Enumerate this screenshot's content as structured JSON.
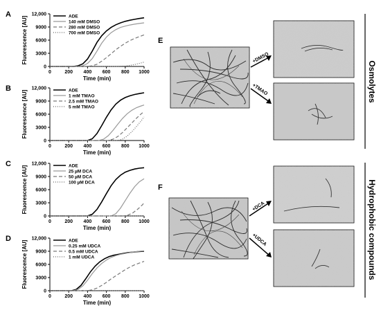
{
  "chart_data": [
    {
      "panel": "A",
      "type": "line",
      "xlabel": "Time (min)",
      "ylabel": "Fluorescence [AU]",
      "xlim": [
        0,
        1000
      ],
      "ylim": [
        0,
        12000
      ],
      "xticks": [
        "0",
        "200",
        "400",
        "600",
        "800",
        "1000"
      ],
      "yticks": [
        "0",
        "3000",
        "6000",
        "9000",
        "12,000"
      ],
      "series": [
        {
          "name": "ADE",
          "style": "solid",
          "color": "#000000",
          "x": [
            0,
            250,
            300,
            350,
            400,
            450,
            500,
            550,
            600,
            650,
            700,
            750,
            800,
            850,
            900,
            950,
            1000
          ],
          "y": [
            0,
            0,
            150,
            600,
            1700,
            3500,
            5500,
            7000,
            8100,
            8900,
            9500,
            9950,
            10300,
            10550,
            10750,
            10950,
            11100
          ]
        },
        {
          "name": "140 mM DMSO",
          "style": "solid",
          "color": "#999999",
          "x": [
            0,
            300,
            350,
            400,
            450,
            500,
            550,
            600,
            650,
            700,
            750,
            800,
            850,
            900,
            950,
            1000
          ],
          "y": [
            0,
            0,
            150,
            700,
            1800,
            3500,
            5300,
            6700,
            7700,
            8400,
            8900,
            9200,
            9450,
            9650,
            9800,
            9950
          ]
        },
        {
          "name": "280 mM DMSO",
          "style": "dashed",
          "color": "#777777",
          "x": [
            0,
            400,
            450,
            500,
            550,
            600,
            650,
            700,
            750,
            800,
            850,
            900,
            950,
            1000
          ],
          "y": [
            0,
            0,
            150,
            500,
            1200,
            2000,
            2900,
            3800,
            4600,
            5300,
            5900,
            6400,
            6800,
            7200
          ]
        },
        {
          "name": "700 mM DMSO",
          "style": "dotted",
          "color": "#666666",
          "x": [
            0,
            700,
            800,
            850,
            900,
            950,
            1000
          ],
          "y": [
            0,
            0,
            100,
            250,
            450,
            700,
            1000
          ]
        }
      ]
    },
    {
      "panel": "B",
      "type": "line",
      "xlabel": "Time (min)",
      "ylabel": "Fluorescence [AU]",
      "xlim": [
        0,
        1000
      ],
      "ylim": [
        0,
        12000
      ],
      "xticks": [
        "0",
        "200",
        "400",
        "600",
        "800",
        "1000"
      ],
      "yticks": [
        "0",
        "3000",
        "6000",
        "9000",
        "12,000"
      ],
      "series": [
        {
          "name": "ADE",
          "style": "solid",
          "color": "#000000",
          "x": [
            0,
            400,
            450,
            500,
            550,
            600,
            650,
            700,
            750,
            800,
            850,
            900,
            950,
            1000
          ],
          "y": [
            0,
            0,
            400,
            1600,
            3400,
            5300,
            7000,
            8300,
            9200,
            9800,
            10200,
            10500,
            10700,
            10900
          ]
        },
        {
          "name": "1 mM TMAO",
          "style": "solid",
          "color": "#999999",
          "x": [
            0,
            520,
            570,
            620,
            670,
            720,
            770,
            820,
            870,
            920,
            970,
            1000
          ],
          "y": [
            0,
            0,
            300,
            1100,
            2300,
            3700,
            5000,
            6100,
            6900,
            7500,
            7900,
            8100
          ]
        },
        {
          "name": "2.5 mM TMAO",
          "style": "dashed",
          "color": "#777777",
          "x": [
            0,
            620,
            670,
            720,
            770,
            820,
            870,
            920,
            970,
            1000
          ],
          "y": [
            0,
            0,
            300,
            900,
            1800,
            2900,
            4000,
            5100,
            6100,
            6600
          ]
        },
        {
          "name": "5 mM TMAO",
          "style": "dotted",
          "color": "#666666",
          "x": [
            0,
            720,
            770,
            820,
            870,
            920,
            970,
            1000
          ],
          "y": [
            0,
            0,
            300,
            1000,
            2000,
            3200,
            4500,
            5400
          ]
        }
      ]
    },
    {
      "panel": "C",
      "type": "line",
      "xlabel": "Time (min)",
      "ylabel": "Fluorescence [AU]",
      "xlim": [
        0,
        1000
      ],
      "ylim": [
        0,
        12000
      ],
      "xticks": [
        "0",
        "200",
        "400",
        "600",
        "800",
        "1000"
      ],
      "yticks": [
        "0",
        "3000",
        "6000",
        "9000",
        "12,000"
      ],
      "series": [
        {
          "name": "ADE",
          "style": "solid",
          "color": "#000000",
          "x": [
            0,
            400,
            450,
            500,
            550,
            600,
            650,
            700,
            750,
            800,
            850,
            900,
            950,
            1000
          ],
          "y": [
            0,
            0,
            400,
            1500,
            3200,
            5100,
            6900,
            8300,
            9300,
            10000,
            10400,
            10700,
            10900,
            11000
          ]
        },
        {
          "name": "25 µM DCA",
          "style": "solid",
          "color": "#999999",
          "x": [
            0,
            650,
            700,
            750,
            800,
            850,
            900,
            950,
            1000
          ],
          "y": [
            0,
            0,
            500,
            1800,
            3500,
            5200,
            6700,
            7800,
            8500
          ]
        },
        {
          "name": "50 µM DCA",
          "style": "dashed",
          "color": "#777777",
          "x": [
            0,
            780,
            830,
            880,
            930,
            980,
            1000
          ],
          "y": [
            0,
            0,
            200,
            700,
            1500,
            2500,
            3000
          ]
        },
        {
          "name": "100 µM DCA",
          "style": "dotted",
          "color": "#666666",
          "x": [
            0,
            1000
          ],
          "y": [
            0,
            0
          ]
        }
      ]
    },
    {
      "panel": "D",
      "type": "line",
      "xlabel": "Time (min)",
      "ylabel": "Fluorescence [AU]",
      "xlim": [
        0,
        1000
      ],
      "ylim": [
        0,
        12000
      ],
      "xticks": [
        "0",
        "200",
        "400",
        "600",
        "800",
        "1000"
      ],
      "yticks": [
        "0",
        "3000",
        "6000",
        "9000",
        "12,000"
      ],
      "series": [
        {
          "name": "ADE",
          "style": "solid",
          "color": "#000000",
          "x": [
            0,
            230,
            280,
            330,
            380,
            430,
            480,
            530,
            580,
            630,
            680,
            730,
            780,
            830,
            880,
            930,
            1000
          ],
          "y": [
            0,
            0,
            300,
            1200,
            2700,
            4300,
            5600,
            6600,
            7300,
            7800,
            8100,
            8300,
            8500,
            8700,
            8800,
            8900,
            9000
          ]
        },
        {
          "name": "0.25 mM UDCA",
          "style": "solid",
          "color": "#999999",
          "x": [
            0,
            250,
            300,
            350,
            400,
            450,
            500,
            550,
            600,
            650,
            700,
            750,
            800,
            850,
            900,
            950,
            1000
          ],
          "y": [
            0,
            0,
            300,
            1100,
            2400,
            3900,
            5200,
            6200,
            7000,
            7600,
            8000,
            8300,
            8500,
            8700,
            8850,
            9000,
            9100
          ]
        },
        {
          "name": "0.5 mM UDCA",
          "style": "dashed",
          "color": "#777777",
          "x": [
            0,
            400,
            450,
            500,
            550,
            600,
            650,
            700,
            750,
            800,
            850,
            900,
            950,
            1000
          ],
          "y": [
            0,
            0,
            200,
            600,
            1200,
            1900,
            2700,
            3400,
            4100,
            4800,
            5400,
            5900,
            6300,
            6700
          ]
        },
        {
          "name": "1 mM UDCA",
          "style": "dotted",
          "color": "#666666",
          "x": [
            0,
            1000
          ],
          "y": [
            0,
            0
          ]
        }
      ]
    }
  ],
  "panels": {
    "E": {
      "label": "E",
      "arrow_top": "+DMSO",
      "arrow_bottom": "+TMAO",
      "category": "Osmolytes"
    },
    "F": {
      "label": "F",
      "arrow_top": "+DCA",
      "arrow_bottom": "+UDCA",
      "category": "Hydrophobic compounds"
    }
  }
}
